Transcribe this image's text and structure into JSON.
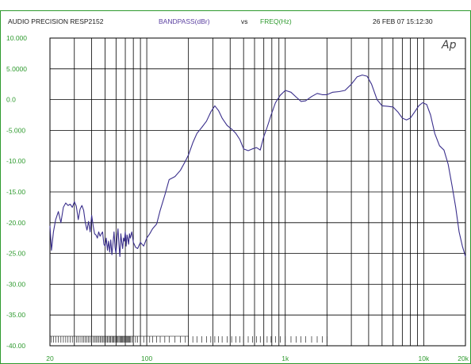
{
  "header": {
    "instrument": "AUDIO PRECISION RESP2152",
    "y_quantity": "BANDPASS(dBr)",
    "vs": "vs",
    "x_quantity": "FREQ(Hz)",
    "timestamp": "26 FEB 07 15:12:30",
    "logo": "Ap"
  },
  "colors": {
    "trace": "#3a2f8c",
    "grid": "#000000",
    "tick_labels": "#2e9a2e",
    "y_quantity": "#5a3fa0",
    "frame": "#2e9a2e"
  },
  "chart_data": {
    "type": "line",
    "x_scale": "log",
    "xlim": [
      20,
      20000
    ],
    "ylim": [
      -40,
      10
    ],
    "grid": true,
    "x_ticks": [
      {
        "value": 20,
        "label": "20"
      },
      {
        "value": 100,
        "label": "100"
      },
      {
        "value": 1000,
        "label": "1k"
      },
      {
        "value": 10000,
        "label": "10k"
      },
      {
        "value": 20000,
        "label": "20k"
      }
    ],
    "y_ticks": [
      {
        "value": 10,
        "label": "10.000"
      },
      {
        "value": 5,
        "label": "5.0000"
      },
      {
        "value": 0,
        "label": "0.0"
      },
      {
        "value": -5,
        "label": "-5.000"
      },
      {
        "value": -10,
        "label": "-10.00"
      },
      {
        "value": -15,
        "label": "-15.00"
      },
      {
        "value": -20,
        "label": "-20.00"
      },
      {
        "value": -25,
        "label": "-25.00"
      },
      {
        "value": -30,
        "label": "-30.00"
      },
      {
        "value": -35,
        "label": "-35.00"
      },
      {
        "value": -40,
        "label": "-40.00"
      }
    ],
    "series": [
      {
        "points": [
          [
            20,
            -20.5
          ],
          [
            20.5,
            -24.5
          ],
          [
            21.2,
            -21.5
          ],
          [
            22,
            -19.5
          ],
          [
            23,
            -18.2
          ],
          [
            24,
            -20
          ],
          [
            25,
            -17.5
          ],
          [
            26,
            -16.8
          ],
          [
            27,
            -17.2
          ],
          [
            28,
            -17
          ],
          [
            29,
            -17.5
          ],
          [
            30,
            -16.6
          ],
          [
            31,
            -17.3
          ],
          [
            32,
            -19.5
          ],
          [
            33,
            -17.8
          ],
          [
            34,
            -17.2
          ],
          [
            35,
            -18
          ],
          [
            36,
            -20
          ],
          [
            37,
            -21.2
          ],
          [
            38,
            -19.8
          ],
          [
            39,
            -21.5
          ],
          [
            40,
            -18.8
          ],
          [
            41,
            -20.5
          ],
          [
            42,
            -21.8
          ],
          [
            43,
            -22
          ],
          [
            44,
            -22.5
          ],
          [
            45,
            -21.5
          ],
          [
            46,
            -22.2
          ],
          [
            47,
            -21.8
          ],
          [
            48,
            -21.5
          ],
          [
            49,
            -23.5
          ],
          [
            50,
            -23.8
          ],
          [
            51,
            -22.5
          ],
          [
            52,
            -24.5
          ],
          [
            53,
            -23
          ],
          [
            54,
            -24.8
          ],
          [
            55,
            -22.8
          ],
          [
            56,
            -25.2
          ],
          [
            57,
            -23.5
          ],
          [
            58,
            -21.5
          ],
          [
            59,
            -24
          ],
          [
            60,
            -25
          ],
          [
            61,
            -22.5
          ],
          [
            62,
            -21
          ],
          [
            63,
            -23.5
          ],
          [
            64,
            -25.5
          ],
          [
            65,
            -21.8
          ],
          [
            66,
            -23.2
          ],
          [
            67,
            -24.2
          ],
          [
            68,
            -22.5
          ],
          [
            69,
            -23
          ],
          [
            70,
            -21.5
          ],
          [
            71,
            -23.8
          ],
          [
            72,
            -22
          ],
          [
            73,
            -22.6
          ],
          [
            74,
            -23.5
          ],
          [
            75,
            -21.8
          ],
          [
            76,
            -22.5
          ],
          [
            78,
            -21.5
          ],
          [
            80,
            -23.2
          ],
          [
            83,
            -24
          ],
          [
            86,
            -24.2
          ],
          [
            90,
            -23.2
          ],
          [
            95,
            -23.8
          ],
          [
            100,
            -22.5
          ],
          [
            105,
            -21.8
          ],
          [
            110,
            -21
          ],
          [
            118,
            -20.2
          ],
          [
            125,
            -18
          ],
          [
            135,
            -15.5
          ],
          [
            145,
            -13
          ],
          [
            160,
            -12.5
          ],
          [
            175,
            -11.5
          ],
          [
            190,
            -10
          ],
          [
            200,
            -9
          ],
          [
            215,
            -7
          ],
          [
            230,
            -5.5
          ],
          [
            250,
            -4.5
          ],
          [
            270,
            -3.5
          ],
          [
            290,
            -2
          ],
          [
            310,
            -1
          ],
          [
            330,
            -1.8
          ],
          [
            350,
            -3
          ],
          [
            380,
            -4.2
          ],
          [
            410,
            -4.8
          ],
          [
            440,
            -5.5
          ],
          [
            470,
            -6.5
          ],
          [
            500,
            -8
          ],
          [
            540,
            -8.3
          ],
          [
            580,
            -8
          ],
          [
            620,
            -7.8
          ],
          [
            660,
            -8.2
          ],
          [
            700,
            -6
          ],
          [
            740,
            -4.5
          ],
          [
            790,
            -2.5
          ],
          [
            850,
            -0.5
          ],
          [
            920,
            0.7
          ],
          [
            1000,
            1.5
          ],
          [
            1100,
            1.2
          ],
          [
            1200,
            0.4
          ],
          [
            1300,
            -0.3
          ],
          [
            1400,
            -0.2
          ],
          [
            1550,
            0.5
          ],
          [
            1700,
            1
          ],
          [
            1850,
            0.8
          ],
          [
            2000,
            0.8
          ],
          [
            2200,
            1.2
          ],
          [
            2450,
            1.3
          ],
          [
            2700,
            1.5
          ],
          [
            3000,
            2.5
          ],
          [
            3300,
            3.7
          ],
          [
            3600,
            4
          ],
          [
            3900,
            3.8
          ],
          [
            4200,
            2.5
          ],
          [
            4600,
            0
          ],
          [
            5000,
            -1
          ],
          [
            5500,
            -1.1
          ],
          [
            6000,
            -1.2
          ],
          [
            6500,
            -2
          ],
          [
            7000,
            -3
          ],
          [
            7500,
            -3.3
          ],
          [
            8000,
            -3
          ],
          [
            8600,
            -2
          ],
          [
            9200,
            -1
          ],
          [
            9800,
            -0.5
          ],
          [
            10500,
            -0.8
          ],
          [
            11200,
            -2.5
          ],
          [
            12000,
            -5.5
          ],
          [
            13000,
            -7.5
          ],
          [
            14000,
            -8.2
          ],
          [
            15000,
            -10.5
          ],
          [
            16000,
            -14
          ],
          [
            17000,
            -17.5
          ],
          [
            18000,
            -21.5
          ],
          [
            19000,
            -23.8
          ],
          [
            20000,
            -25.5
          ]
        ]
      }
    ]
  }
}
